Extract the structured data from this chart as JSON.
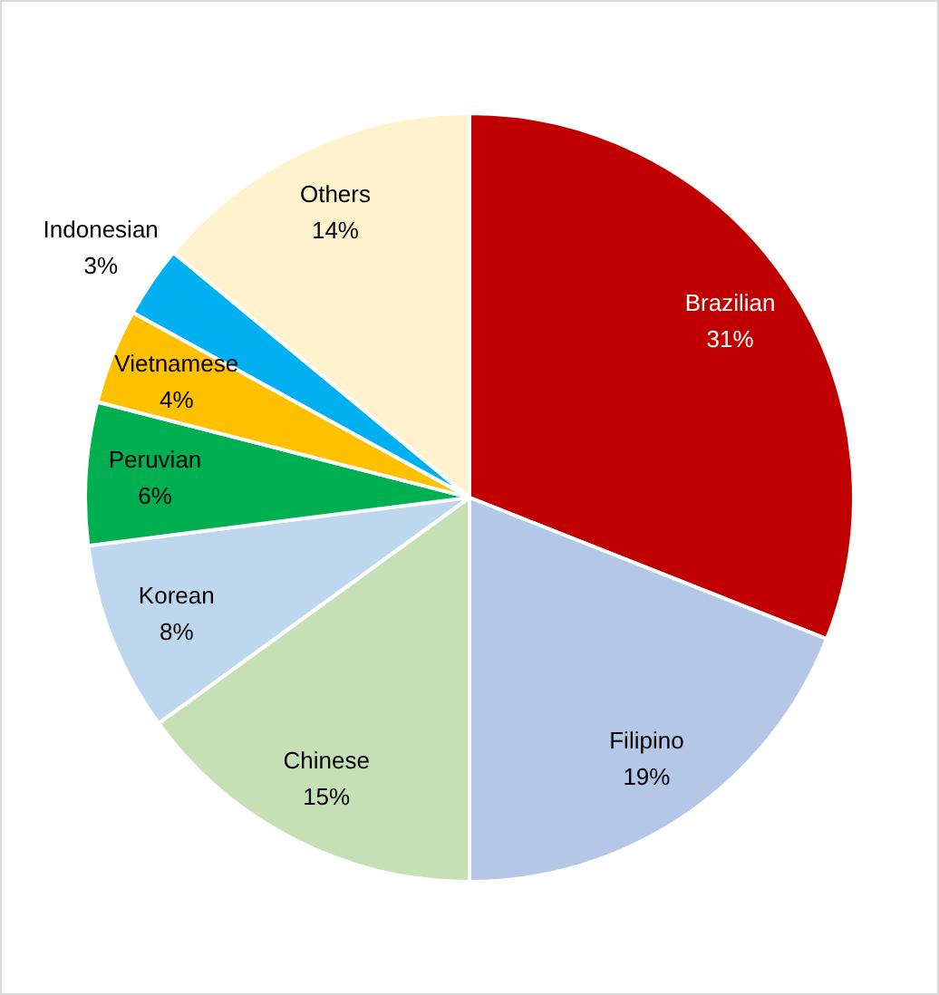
{
  "chart_data": {
    "type": "pie",
    "categories": [
      "Brazilian",
      "Filipino",
      "Chinese",
      "Korean",
      "Peruvian",
      "Vietnamese",
      "Indonesian",
      "Others"
    ],
    "values": [
      31,
      19,
      15,
      8,
      6,
      4,
      3,
      14
    ],
    "value_labels": [
      "31%",
      "19%",
      "15%",
      "8%",
      "6%",
      "4%",
      "3%",
      "14%"
    ],
    "colors": [
      "#c00000",
      "#b4c7e7",
      "#c5e0b4",
      "#bdd7ee",
      "#00b050",
      "#ffc000",
      "#00b0f0",
      "#fff2cc"
    ],
    "legend": false
  }
}
